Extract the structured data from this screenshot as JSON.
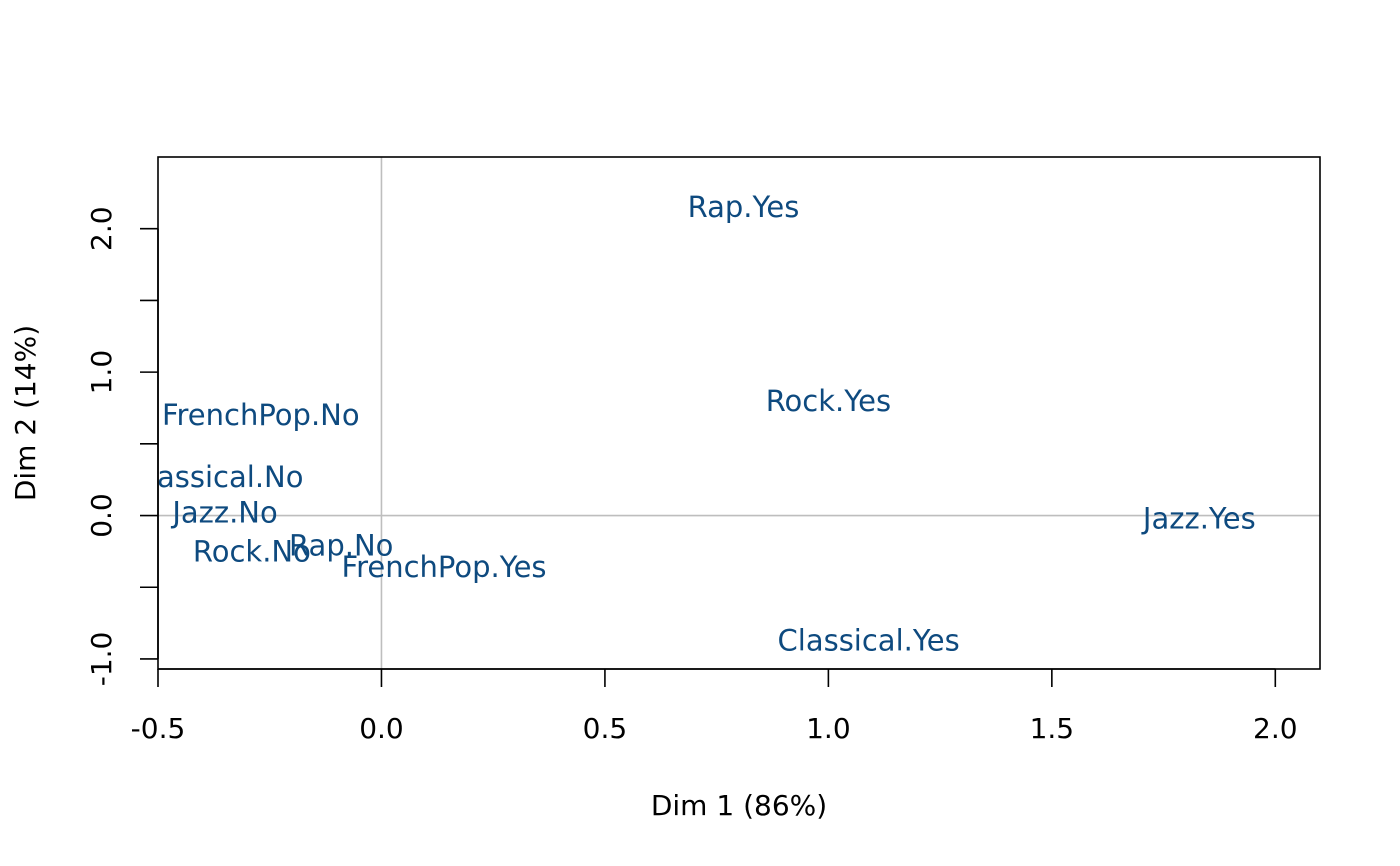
{
  "chart_data": {
    "type": "scatter",
    "title": "",
    "xlabel": "Dim 1 (86%)",
    "ylabel": "Dim 2 (14%)",
    "xlim": [
      -0.5,
      2.1
    ],
    "ylim": [
      -1.07,
      2.5
    ],
    "xticks": [
      -0.5,
      0.0,
      0.5,
      1.0,
      1.5,
      2.0
    ],
    "xtick_labels": [
      "-0.5",
      "0.0",
      "0.5",
      "1.0",
      "1.5",
      "2.0"
    ],
    "yticks": [
      -1.0,
      -0.5,
      0.0,
      0.5,
      1.0,
      1.5,
      2.0
    ],
    "ytick_labels": [
      "-1.0",
      "",
      "0.0",
      "",
      "1.0",
      "",
      "2.0"
    ],
    "reference_lines": {
      "x": 0,
      "y": 0,
      "color": "#bebebe"
    },
    "label_color": "#0e4a7f",
    "points": [
      {
        "label": "Rap.Yes",
        "x": 0.81,
        "y": 2.15
      },
      {
        "label": "Rock.Yes",
        "x": 1.0,
        "y": 0.8
      },
      {
        "label": "FrenchPop.No",
        "x": -0.27,
        "y": 0.7
      },
      {
        "label": "Classical.No",
        "x": -0.37,
        "y": 0.27
      },
      {
        "label": "Jazz.No",
        "x": -0.35,
        "y": 0.02
      },
      {
        "label": "Jazz.Yes",
        "x": 1.83,
        "y": -0.02
      },
      {
        "label": "Rap.No",
        "x": -0.09,
        "y": -0.21
      },
      {
        "label": "Rock.No",
        "x": -0.29,
        "y": -0.25
      },
      {
        "label": "FrenchPop.Yes",
        "x": 0.14,
        "y": -0.36
      },
      {
        "label": "Classical.Yes",
        "x": 1.09,
        "y": -0.87
      }
    ]
  }
}
